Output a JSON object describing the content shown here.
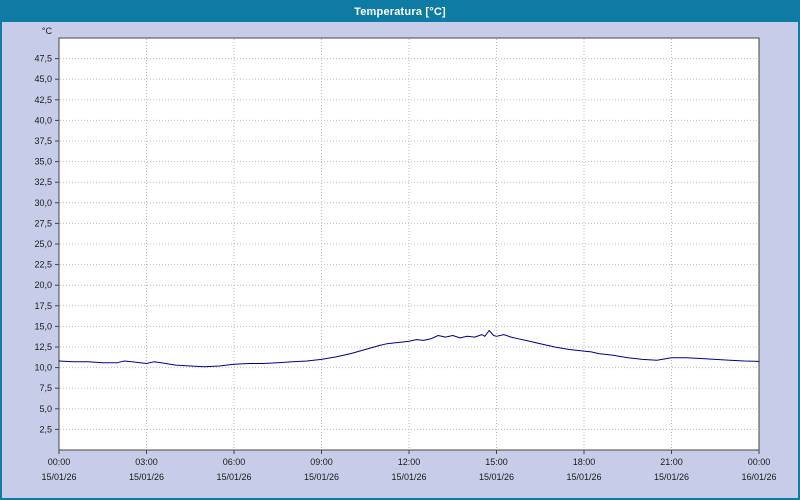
{
  "window": {
    "title": "Temperatura [°C]"
  },
  "colors": {
    "titlebar_bg": "#0d7ba4",
    "titlebar_text": "#ffffff",
    "window_bg": "#c7cde8",
    "plot_bg": "#ffffff",
    "plot_border": "#444444",
    "grid": "#b9bcc8",
    "axis_text": "#1a1a1a",
    "line": "#00008b"
  },
  "chart_data": {
    "type": "line",
    "title": "Temperatura [°C]",
    "xlabel": "",
    "ylabel": "°C",
    "xlim": [
      0,
      24
    ],
    "ylim": [
      0,
      50
    ],
    "grid": true,
    "legend_position": "none",
    "y_ticks": [
      2.5,
      5,
      7.5,
      10,
      12.5,
      15,
      17.5,
      20,
      22.5,
      25,
      27.5,
      30,
      32.5,
      35,
      37.5,
      40,
      42.5,
      45,
      47.5
    ],
    "x_ticks": [
      {
        "hour": 0,
        "time": "00:00",
        "date": "15/01/26"
      },
      {
        "hour": 3,
        "time": "03:00",
        "date": "15/01/26"
      },
      {
        "hour": 6,
        "time": "06:00",
        "date": "15/01/26"
      },
      {
        "hour": 9,
        "time": "09:00",
        "date": "15/01/26"
      },
      {
        "hour": 12,
        "time": "12:00",
        "date": "15/01/26"
      },
      {
        "hour": 15,
        "time": "15:00",
        "date": "15/01/26"
      },
      {
        "hour": 18,
        "time": "18:00",
        "date": "15/01/26"
      },
      {
        "hour": 21,
        "time": "21:00",
        "date": "15/01/26"
      },
      {
        "hour": 24,
        "time": "00:00",
        "date": "16/01/26"
      }
    ],
    "series": [
      {
        "name": "Temperatura",
        "color": "#00008b",
        "x": [
          0,
          0.5,
          1,
          1.5,
          2,
          2.25,
          2.5,
          3,
          3.25,
          3.5,
          4,
          4.5,
          5,
          5.5,
          6,
          6.5,
          7,
          7.5,
          8,
          8.5,
          9,
          9.5,
          10,
          10.5,
          11,
          11.25,
          11.5,
          11.75,
          12,
          12.25,
          12.5,
          12.75,
          13,
          13.25,
          13.5,
          13.75,
          14,
          14.25,
          14.5,
          14.6,
          14.75,
          14.9,
          15,
          15.25,
          15.5,
          15.75,
          16,
          16.5,
          17,
          17.5,
          18,
          18.25,
          18.5,
          19,
          19.5,
          20,
          20.5,
          21,
          21.5,
          22,
          22.5,
          23,
          23.5,
          24
        ],
        "y": [
          10.8,
          10.7,
          10.7,
          10.6,
          10.6,
          10.8,
          10.7,
          10.5,
          10.7,
          10.6,
          10.3,
          10.2,
          10.1,
          10.2,
          10.4,
          10.5,
          10.5,
          10.6,
          10.7,
          10.8,
          11.0,
          11.3,
          11.7,
          12.2,
          12.7,
          12.9,
          13.0,
          13.1,
          13.2,
          13.4,
          13.3,
          13.5,
          13.9,
          13.7,
          13.9,
          13.6,
          13.8,
          13.7,
          14.0,
          13.8,
          14.5,
          13.9,
          13.8,
          14.0,
          13.7,
          13.5,
          13.3,
          12.9,
          12.5,
          12.2,
          12.0,
          11.9,
          11.7,
          11.5,
          11.2,
          11.0,
          10.9,
          11.2,
          11.2,
          11.1,
          11.0,
          10.9,
          10.8,
          10.75
        ]
      }
    ]
  }
}
